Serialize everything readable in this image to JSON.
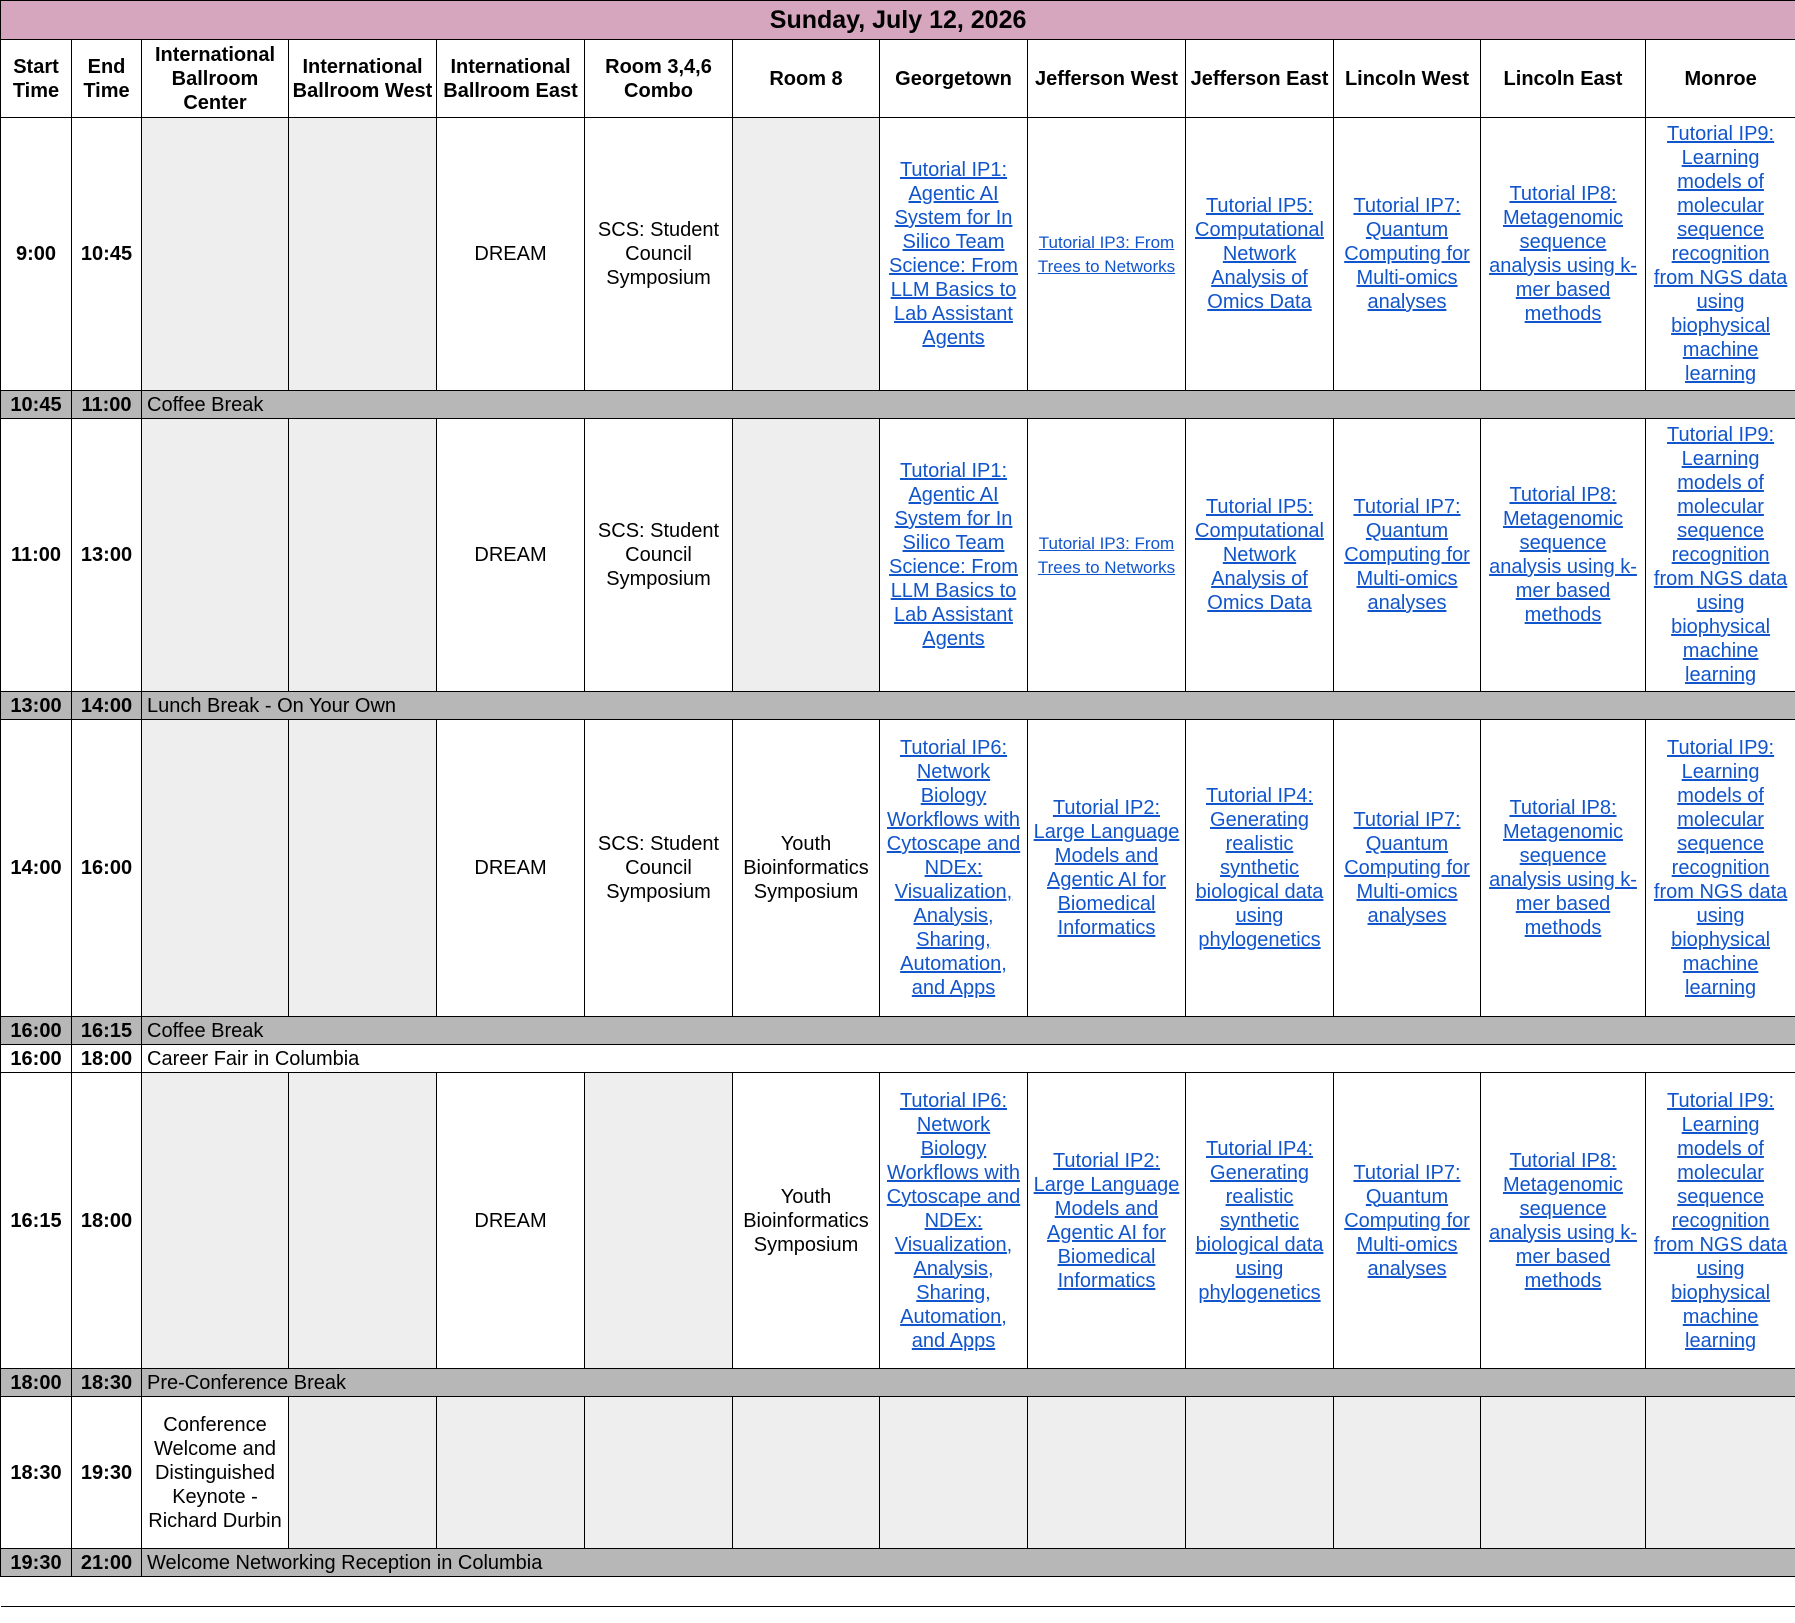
{
  "title": "Sunday, July 12, 2026",
  "columns": [
    "Start Time",
    "End Time",
    "International Ballroom Center",
    "International Ballroom West",
    "International Ballroom East",
    "Room 3,4,6 Combo",
    "Room 8",
    "Georgetown",
    "Jefferson West",
    "Jefferson East",
    "Lincoln West",
    "Lincoln East",
    "Monroe"
  ],
  "colors": {
    "title_bg": "#d5a6bd",
    "break_bg": "#b7b7b7",
    "empty_bg": "#eeeeee",
    "link": "#1155cc"
  },
  "rows": [
    {
      "type": "session",
      "start": "9:00",
      "end": "10:45",
      "cells": [
        null,
        null,
        {
          "text": "DREAM"
        },
        {
          "text": "SCS: Student Council Symposium"
        },
        null,
        {
          "text": "Tutorial IP1: Agentic AI System for In Silico Team Science: From LLM Basics to Lab Assistant Agents",
          "link": true
        },
        {
          "text": "Tutorial IP3: From Trees to Networks",
          "link": true,
          "small": true
        },
        {
          "text": "Tutorial IP5: Computational Network Analysis of Omics Data",
          "link": true
        },
        {
          "text": "Tutorial IP7: Quantum Computing for Multi-omics analyses",
          "link": true
        },
        {
          "text": "Tutorial IP8: Metagenomic sequence analysis using k-mer based methods",
          "link": true
        },
        {
          "text": "Tutorial IP9: Learning models of molecular sequence recognition from NGS data using biophysical machine learning",
          "link": true
        }
      ]
    },
    {
      "type": "break",
      "start": "10:45",
      "end": "11:00",
      "label": "Coffee Break"
    },
    {
      "type": "session",
      "start": "11:00",
      "end": "13:00",
      "cells": [
        null,
        null,
        {
          "text": "DREAM"
        },
        {
          "text": "SCS: Student Council Symposium"
        },
        null,
        {
          "text": "Tutorial IP1: Agentic AI System for In Silico Team Science: From LLM Basics to Lab Assistant Agents",
          "link": true
        },
        {
          "text": "Tutorial IP3: From Trees to Networks",
          "link": true,
          "small": true
        },
        {
          "text": "Tutorial IP5: Computational Network Analysis of Omics Data",
          "link": true
        },
        {
          "text": "Tutorial IP7: Quantum Computing for Multi-omics analyses",
          "link": true
        },
        {
          "text": "Tutorial IP8: Metagenomic sequence analysis using k-mer based methods",
          "link": true
        },
        {
          "text": "Tutorial IP9: Learning models of molecular sequence recognition from NGS data using biophysical machine learning",
          "link": true
        }
      ]
    },
    {
      "type": "break",
      "start": "13:00",
      "end": "14:00",
      "label": "Lunch Break - On Your Own"
    },
    {
      "type": "session",
      "start": "14:00",
      "end": "16:00",
      "cells": [
        null,
        null,
        {
          "text": "DREAM"
        },
        {
          "text": "SCS: Student Council Symposium"
        },
        {
          "text": "Youth Bioinformatics Symposium"
        },
        {
          "text": "Tutorial IP6: Network Biology Workflows with Cytoscape and NDEx: Visualization, Analysis, Sharing, Automation, and Apps",
          "link": true
        },
        {
          "text": "Tutorial IP2: Large Language Models and Agentic AI for Biomedical Informatics",
          "link": true
        },
        {
          "text": "Tutorial IP4: Generating realistic synthetic biological data using phylogenetics",
          "link": true
        },
        {
          "text": "Tutorial IP7: Quantum Computing for Multi-omics analyses",
          "link": true
        },
        {
          "text": "Tutorial IP8: Metagenomic sequence analysis using k-mer based methods",
          "link": true
        },
        {
          "text": "Tutorial IP9: Learning models of molecular sequence recognition from NGS data using biophysical machine learning",
          "link": true
        }
      ]
    },
    {
      "type": "break",
      "start": "16:00",
      "end": "16:15",
      "label": "Coffee Break"
    },
    {
      "type": "event",
      "start": "16:00",
      "end": "18:00",
      "label": "Career Fair in Columbia"
    },
    {
      "type": "session",
      "start": "16:15",
      "end": "18:00",
      "cells": [
        null,
        null,
        {
          "text": "DREAM"
        },
        null,
        {
          "text": "Youth Bioinformatics Symposium"
        },
        {
          "text": "Tutorial IP6: Network Biology Workflows with Cytoscape and NDEx: Visualization, Analysis, Sharing, Automation, and Apps",
          "link": true
        },
        {
          "text": "Tutorial IP2: Large Language Models and Agentic AI for Biomedical Informatics",
          "link": true
        },
        {
          "text": "Tutorial IP4: Generating realistic synthetic biological data using phylogenetics",
          "link": true
        },
        {
          "text": "Tutorial IP7: Quantum Computing for Multi-omics analyses",
          "link": true
        },
        {
          "text": "Tutorial IP8: Metagenomic sequence analysis using k-mer based methods",
          "link": true
        },
        {
          "text": "Tutorial IP9: Learning models of molecular sequence recognition from NGS data using biophysical machine learning",
          "link": true
        }
      ]
    },
    {
      "type": "break",
      "start": "18:00",
      "end": "18:30",
      "label": "Pre-Conference Break"
    },
    {
      "type": "session",
      "start": "18:30",
      "end": "19:30",
      "cells": [
        {
          "text": "Conference Welcome and Distinguished Keynote - Richard Durbin"
        },
        null,
        null,
        null,
        null,
        null,
        null,
        null,
        null,
        null,
        null
      ]
    },
    {
      "type": "break",
      "start": "19:30",
      "end": "21:00",
      "label": "Welcome Networking Reception in Columbia"
    }
  ]
}
